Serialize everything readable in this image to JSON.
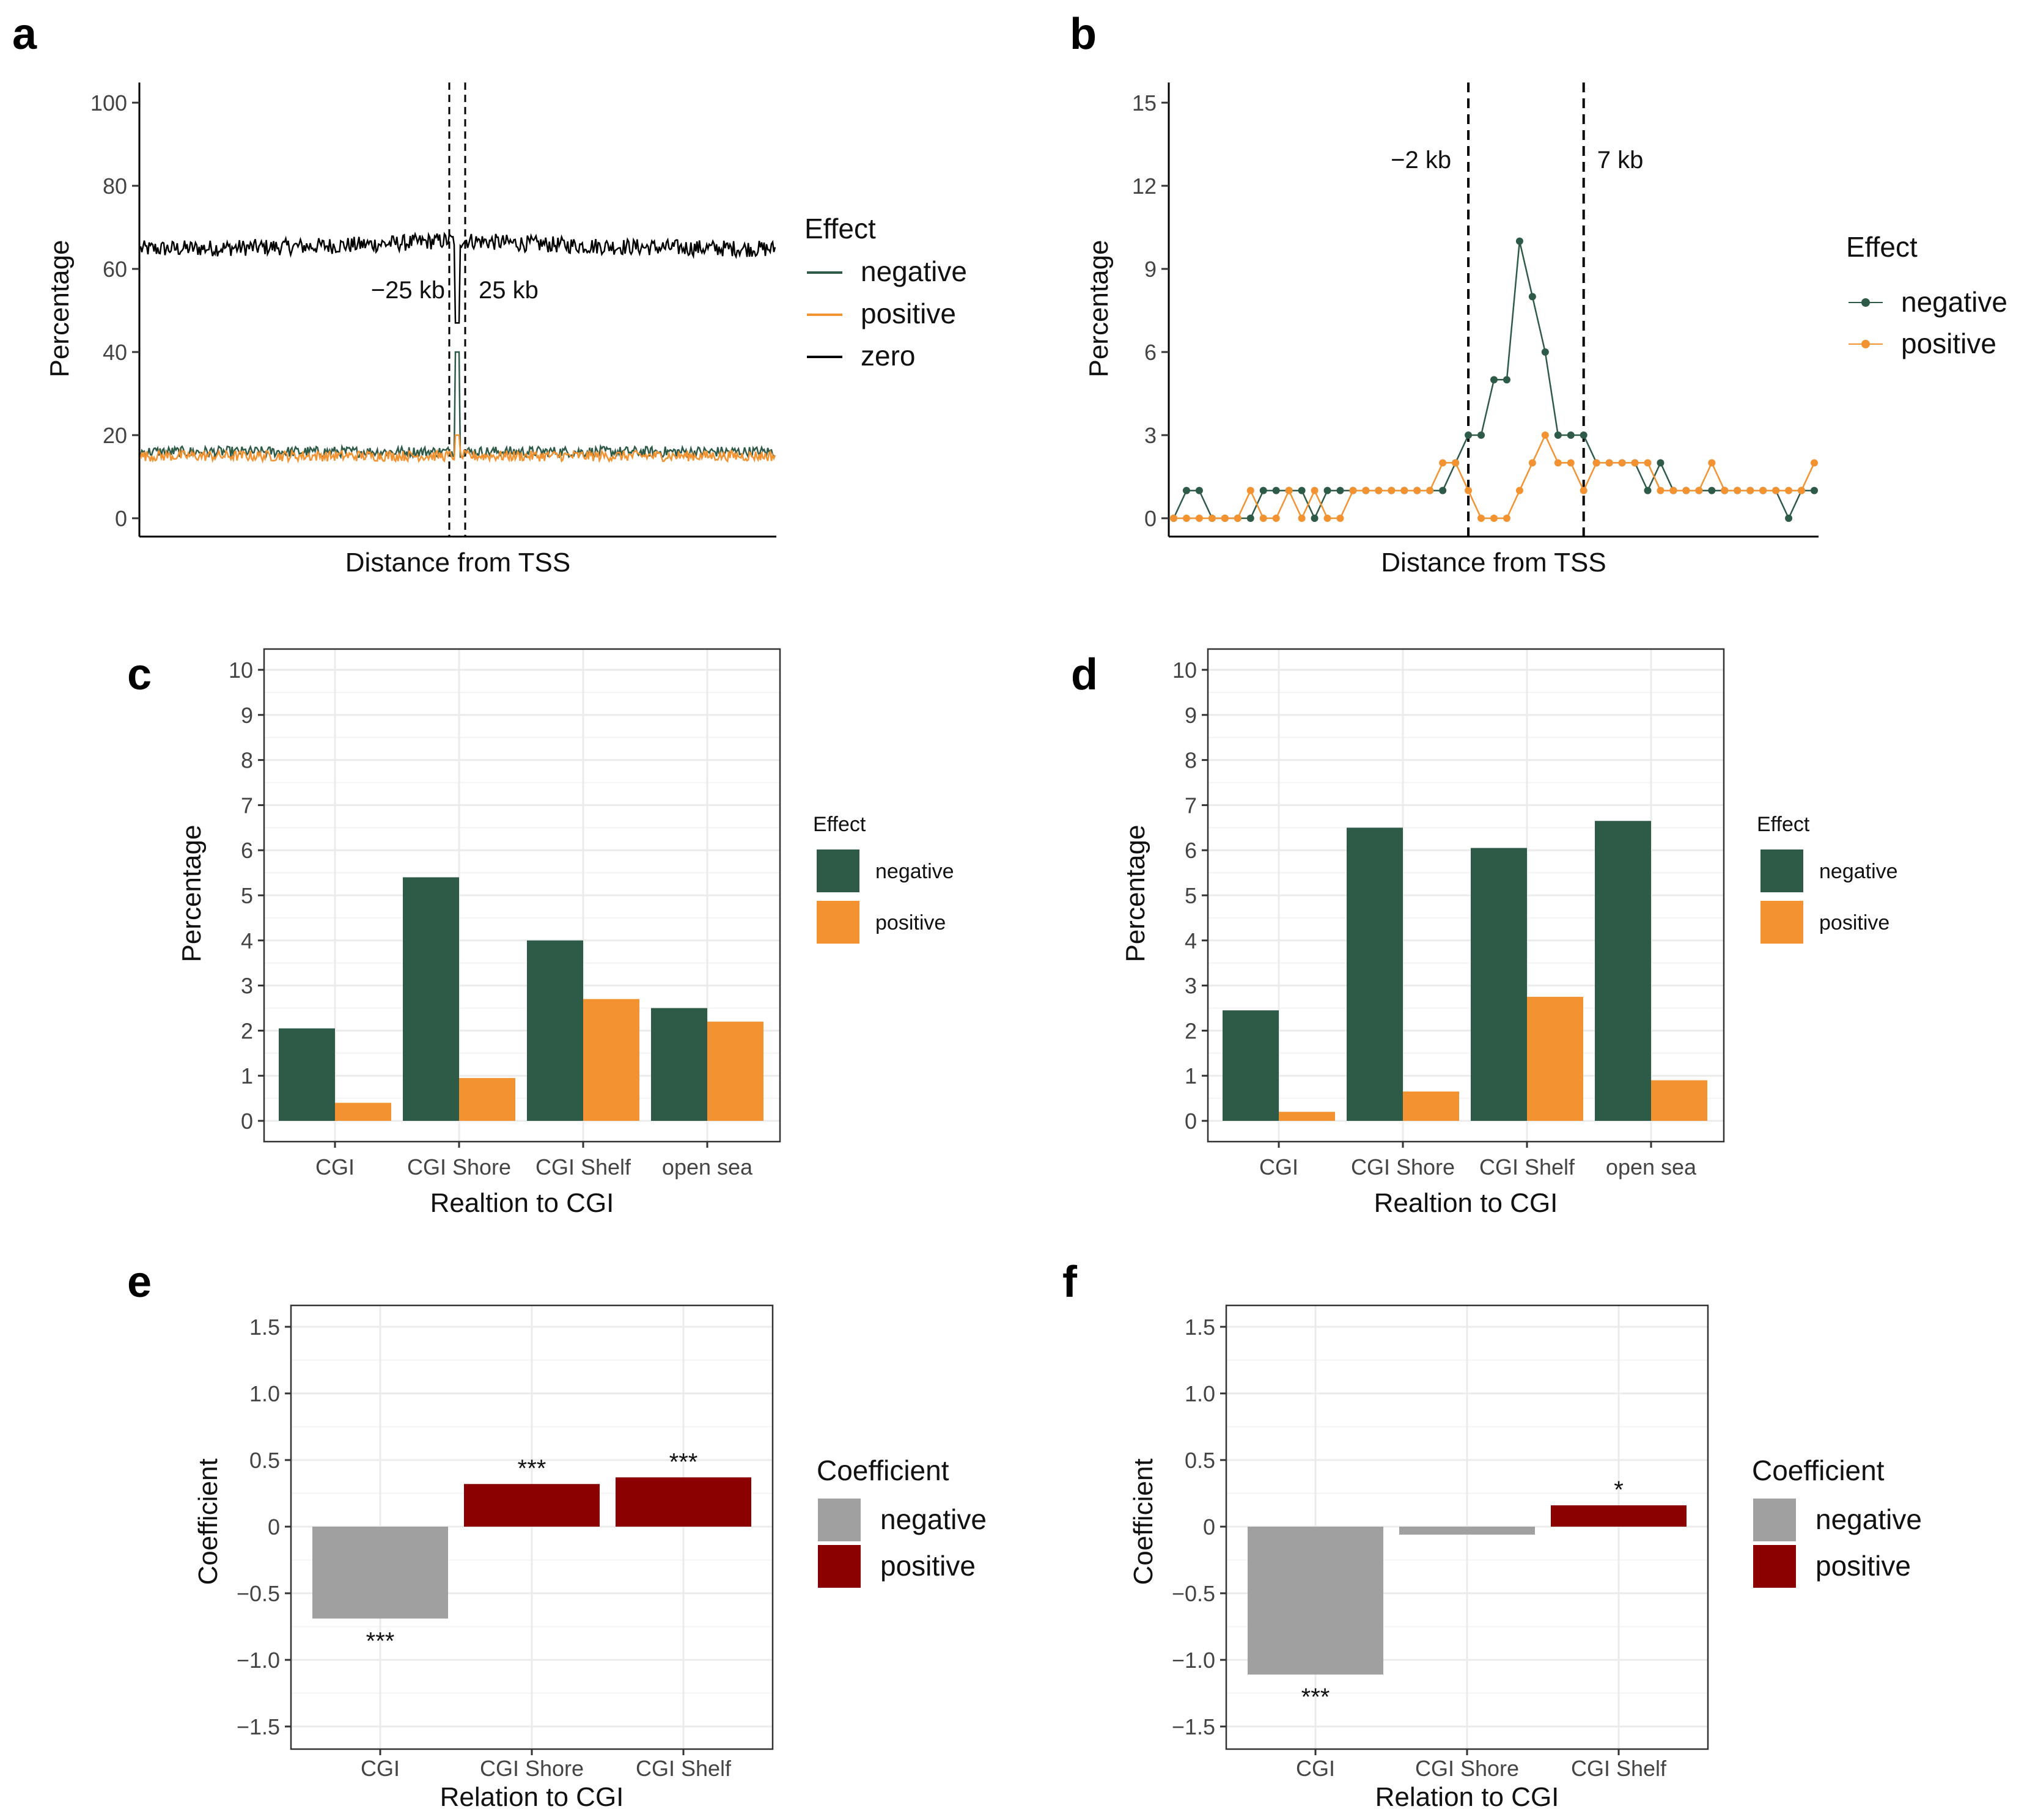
{
  "colors": {
    "negative": "#2e5a48",
    "positive": "#f39230",
    "zero": "#000000",
    "coef_negative": "#a0a0a0",
    "coef_positive": "#8b0000",
    "grid": "#ebebeb"
  },
  "chart_data": [
    {
      "panel": "a",
      "type": "line",
      "xlabel": "Distance from TSS",
      "ylabel": "Percentage",
      "ylim": [
        0,
        100
      ],
      "yticks": [
        "0",
        "20",
        "40",
        "60",
        "80",
        "100"
      ],
      "legend_title": "Effect",
      "legend": [
        "negative",
        "positive",
        "zero"
      ],
      "vlines": [
        {
          "label": "−25 kb"
        },
        {
          "label": "25 kb"
        }
      ],
      "series": [
        {
          "name": "zero",
          "level": 67,
          "noise": 2.0,
          "spike_at_center": 47
        },
        {
          "name": "negative",
          "level": 16,
          "noise": 1.3,
          "spike_at_center": 40
        },
        {
          "name": "positive",
          "level": 15,
          "noise": 1.3,
          "spike_at_center": 20
        }
      ]
    },
    {
      "panel": "b",
      "type": "line",
      "xlabel": "Distance from TSS",
      "ylabel": "Percentage",
      "ylim": [
        0,
        15
      ],
      "yticks": [
        "0",
        "3",
        "6",
        "9",
        "12",
        "15"
      ],
      "legend_title": "Effect",
      "legend": [
        "negative",
        "positive"
      ],
      "vlines": [
        {
          "label": "−2 kb",
          "x": 23
        },
        {
          "label": "7 kb",
          "x": 32
        }
      ],
      "series": [
        {
          "name": "negative",
          "values": [
            0,
            1,
            1,
            0,
            0,
            0,
            0,
            1,
            1,
            1,
            1,
            0,
            1,
            1,
            1,
            1,
            1,
            1,
            1,
            1,
            1,
            1,
            2,
            3,
            3,
            5,
            5,
            10,
            8,
            6,
            3,
            3,
            3,
            2,
            2,
            2,
            2,
            1,
            2,
            1,
            1,
            1,
            1,
            1,
            1,
            1,
            1,
            1,
            0,
            1,
            1
          ]
        },
        {
          "name": "positive",
          "values": [
            0,
            0,
            0,
            0,
            0,
            0,
            1,
            0,
            0,
            1,
            0,
            1,
            0,
            0,
            1,
            1,
            1,
            1,
            1,
            1,
            1,
            2,
            2,
            1,
            0,
            0,
            0,
            1,
            2,
            3,
            2,
            2,
            1,
            2,
            2,
            2,
            2,
            2,
            1,
            1,
            1,
            1,
            2,
            1,
            1,
            1,
            1,
            1,
            1,
            1,
            2
          ]
        }
      ]
    },
    {
      "panel": "c",
      "type": "bar",
      "categories": [
        "CGI",
        "CGI Shore",
        "CGI Shelf",
        "open sea"
      ],
      "xlabel": "Realtion to CGI",
      "ylabel": "Percentage",
      "ylim": [
        0,
        10
      ],
      "yticks": [
        "0",
        "1",
        "2",
        "3",
        "4",
        "5",
        "6",
        "7",
        "8",
        "9",
        "10"
      ],
      "legend_title": "Effect",
      "series": [
        {
          "name": "negative",
          "values": [
            2.05,
            5.4,
            4.0,
            2.5
          ]
        },
        {
          "name": "positive",
          "values": [
            0.4,
            0.95,
            2.7,
            2.2
          ]
        }
      ]
    },
    {
      "panel": "d",
      "type": "bar",
      "categories": [
        "CGI",
        "CGI Shore",
        "CGI Shelf",
        "open sea"
      ],
      "xlabel": "Realtion to CGI",
      "ylabel": "Percentage",
      "ylim": [
        0,
        10
      ],
      "yticks": [
        "0",
        "1",
        "2",
        "3",
        "4",
        "5",
        "6",
        "7",
        "8",
        "9",
        "10"
      ],
      "legend_title": "Effect",
      "series": [
        {
          "name": "negative",
          "values": [
            2.45,
            6.5,
            6.05,
            6.65
          ]
        },
        {
          "name": "positive",
          "values": [
            0.2,
            0.65,
            2.75,
            0.9
          ]
        }
      ]
    },
    {
      "panel": "e",
      "type": "bar",
      "categories": [
        "CGI",
        "CGI Shore",
        "CGI Shelf"
      ],
      "xlabel": "Relation to CGI",
      "ylabel": "Coefficient",
      "ylim": [
        -1.65,
        1.65
      ],
      "yticks": [
        "−1.5",
        "−1.0",
        "−0.5",
        "0",
        "0.5",
        "1.0",
        "1.5"
      ],
      "legend_title": "Coefficient",
      "legend": [
        "negative",
        "positive"
      ],
      "values": [
        -0.69,
        0.32,
        0.37
      ],
      "significance": [
        "***",
        "***",
        "***"
      ]
    },
    {
      "panel": "f",
      "type": "bar",
      "categories": [
        "CGI",
        "CGI Shore",
        "CGI Shelf"
      ],
      "xlabel": "Relation to CGI",
      "ylabel": "Coefficient",
      "ylim": [
        -1.65,
        1.65
      ],
      "yticks": [
        "−1.5",
        "−1.0",
        "−0.5",
        "0",
        "0.5",
        "1.0",
        "1.5"
      ],
      "legend_title": "Coefficient",
      "legend": [
        "negative",
        "positive"
      ],
      "values": [
        -1.11,
        -0.06,
        0.16
      ],
      "significance": [
        "***",
        "",
        "*"
      ]
    }
  ]
}
